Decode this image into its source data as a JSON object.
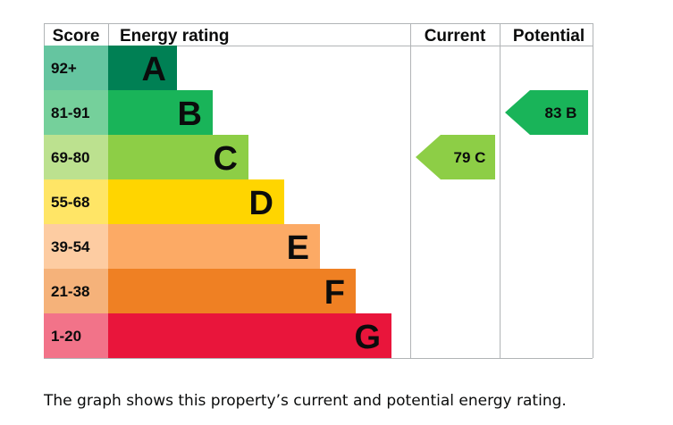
{
  "chart_data": {
    "type": "bar",
    "headers": {
      "score": "Score",
      "rating": "Energy rating",
      "current": "Current",
      "potential": "Potential"
    },
    "bands": [
      {
        "letter": "A",
        "score": "92+",
        "color": "#008054",
        "score_bg": "#65c5a0"
      },
      {
        "letter": "B",
        "score": "81-91",
        "color": "#19b459",
        "score_bg": "#75d09b"
      },
      {
        "letter": "C",
        "score": "69-80",
        "color": "#8dce46",
        "score_bg": "#bce18f"
      },
      {
        "letter": "D",
        "score": "55-68",
        "color": "#ffd500",
        "score_bg": "#ffe566"
      },
      {
        "letter": "E",
        "score": "39-54",
        "color": "#fcaa65",
        "score_bg": "#fdcca2"
      },
      {
        "letter": "F",
        "score": "21-38",
        "color": "#ef8023",
        "score_bg": "#f5b27a"
      },
      {
        "letter": "G",
        "score": "1-20",
        "color": "#e9153b",
        "score_bg": "#f27389"
      }
    ],
    "current": {
      "label": "79 C",
      "value": 79,
      "band": "C",
      "color": "#8dce46"
    },
    "potential": {
      "label": "83 B",
      "value": 83,
      "band": "B",
      "color": "#19b459"
    }
  },
  "caption": "The graph shows this property’s current and potential energy rating."
}
